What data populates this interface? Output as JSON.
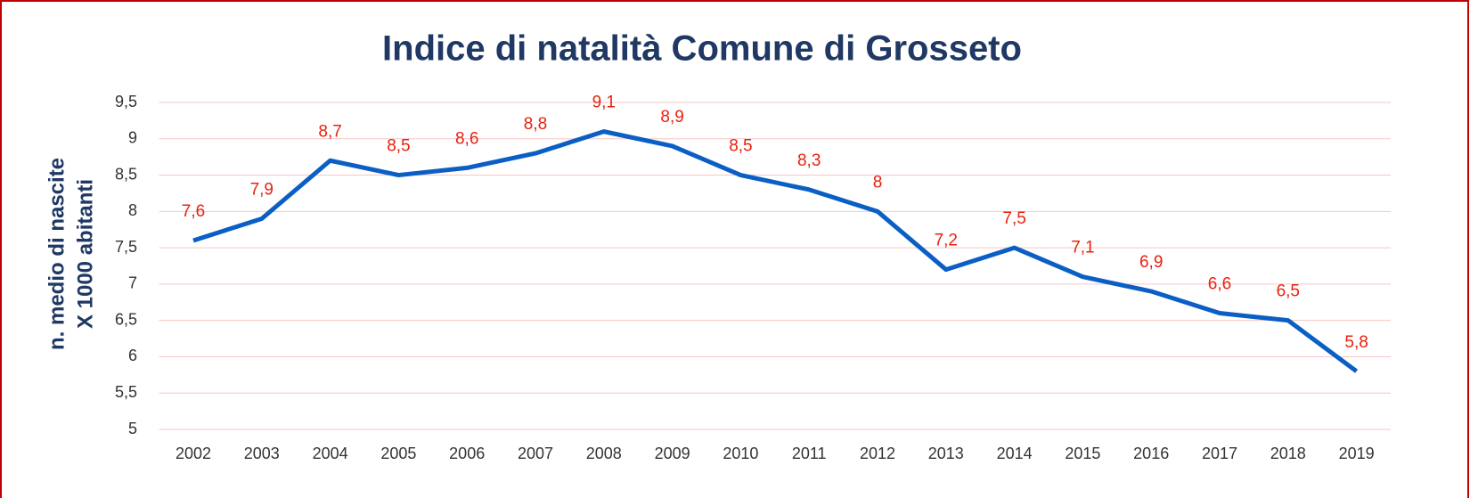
{
  "chart_data": {
    "type": "line",
    "title": "Indice di natalità Comune di Grosseto",
    "ylabel": [
      "n. medio di nascite",
      "X 1000 abitanti"
    ],
    "categories": [
      "2002",
      "2003",
      "2004",
      "2005",
      "2006",
      "2007",
      "2008",
      "2009",
      "2010",
      "2011",
      "2012",
      "2013",
      "2014",
      "2015",
      "2016",
      "2017",
      "2018",
      "2019"
    ],
    "series": [
      {
        "name": "Indice di natalità",
        "color": "#0b5fc4",
        "values": [
          7.6,
          7.9,
          8.7,
          8.5,
          8.6,
          8.8,
          9.1,
          8.9,
          8.5,
          8.3,
          8,
          7.2,
          7.5,
          7.1,
          6.9,
          6.6,
          6.5,
          5.8
        ],
        "value_labels": [
          "7,6",
          "7,9",
          "8,7",
          "8,5",
          "8,6",
          "8,8",
          "9,1",
          "8,9",
          "8,5",
          "8,3",
          "8",
          "7,2",
          "7,5",
          "7,1",
          "6,9",
          "6,6",
          "6,5",
          "5,8"
        ],
        "label_color": "#e8210f"
      }
    ],
    "ylim": [
      5,
      9.5
    ],
    "yticks": [
      5,
      {
        "value": 5.5,
        "label": "5,5"
      },
      6,
      {
        "value": 6.5,
        "label": "6,5"
      },
      7,
      {
        "value": 7.5,
        "label": "7,5"
      },
      8,
      {
        "value": 8.5,
        "label": "8,5"
      },
      9,
      {
        "value": 9.5,
        "label": "9,5"
      }
    ],
    "grid": true
  }
}
